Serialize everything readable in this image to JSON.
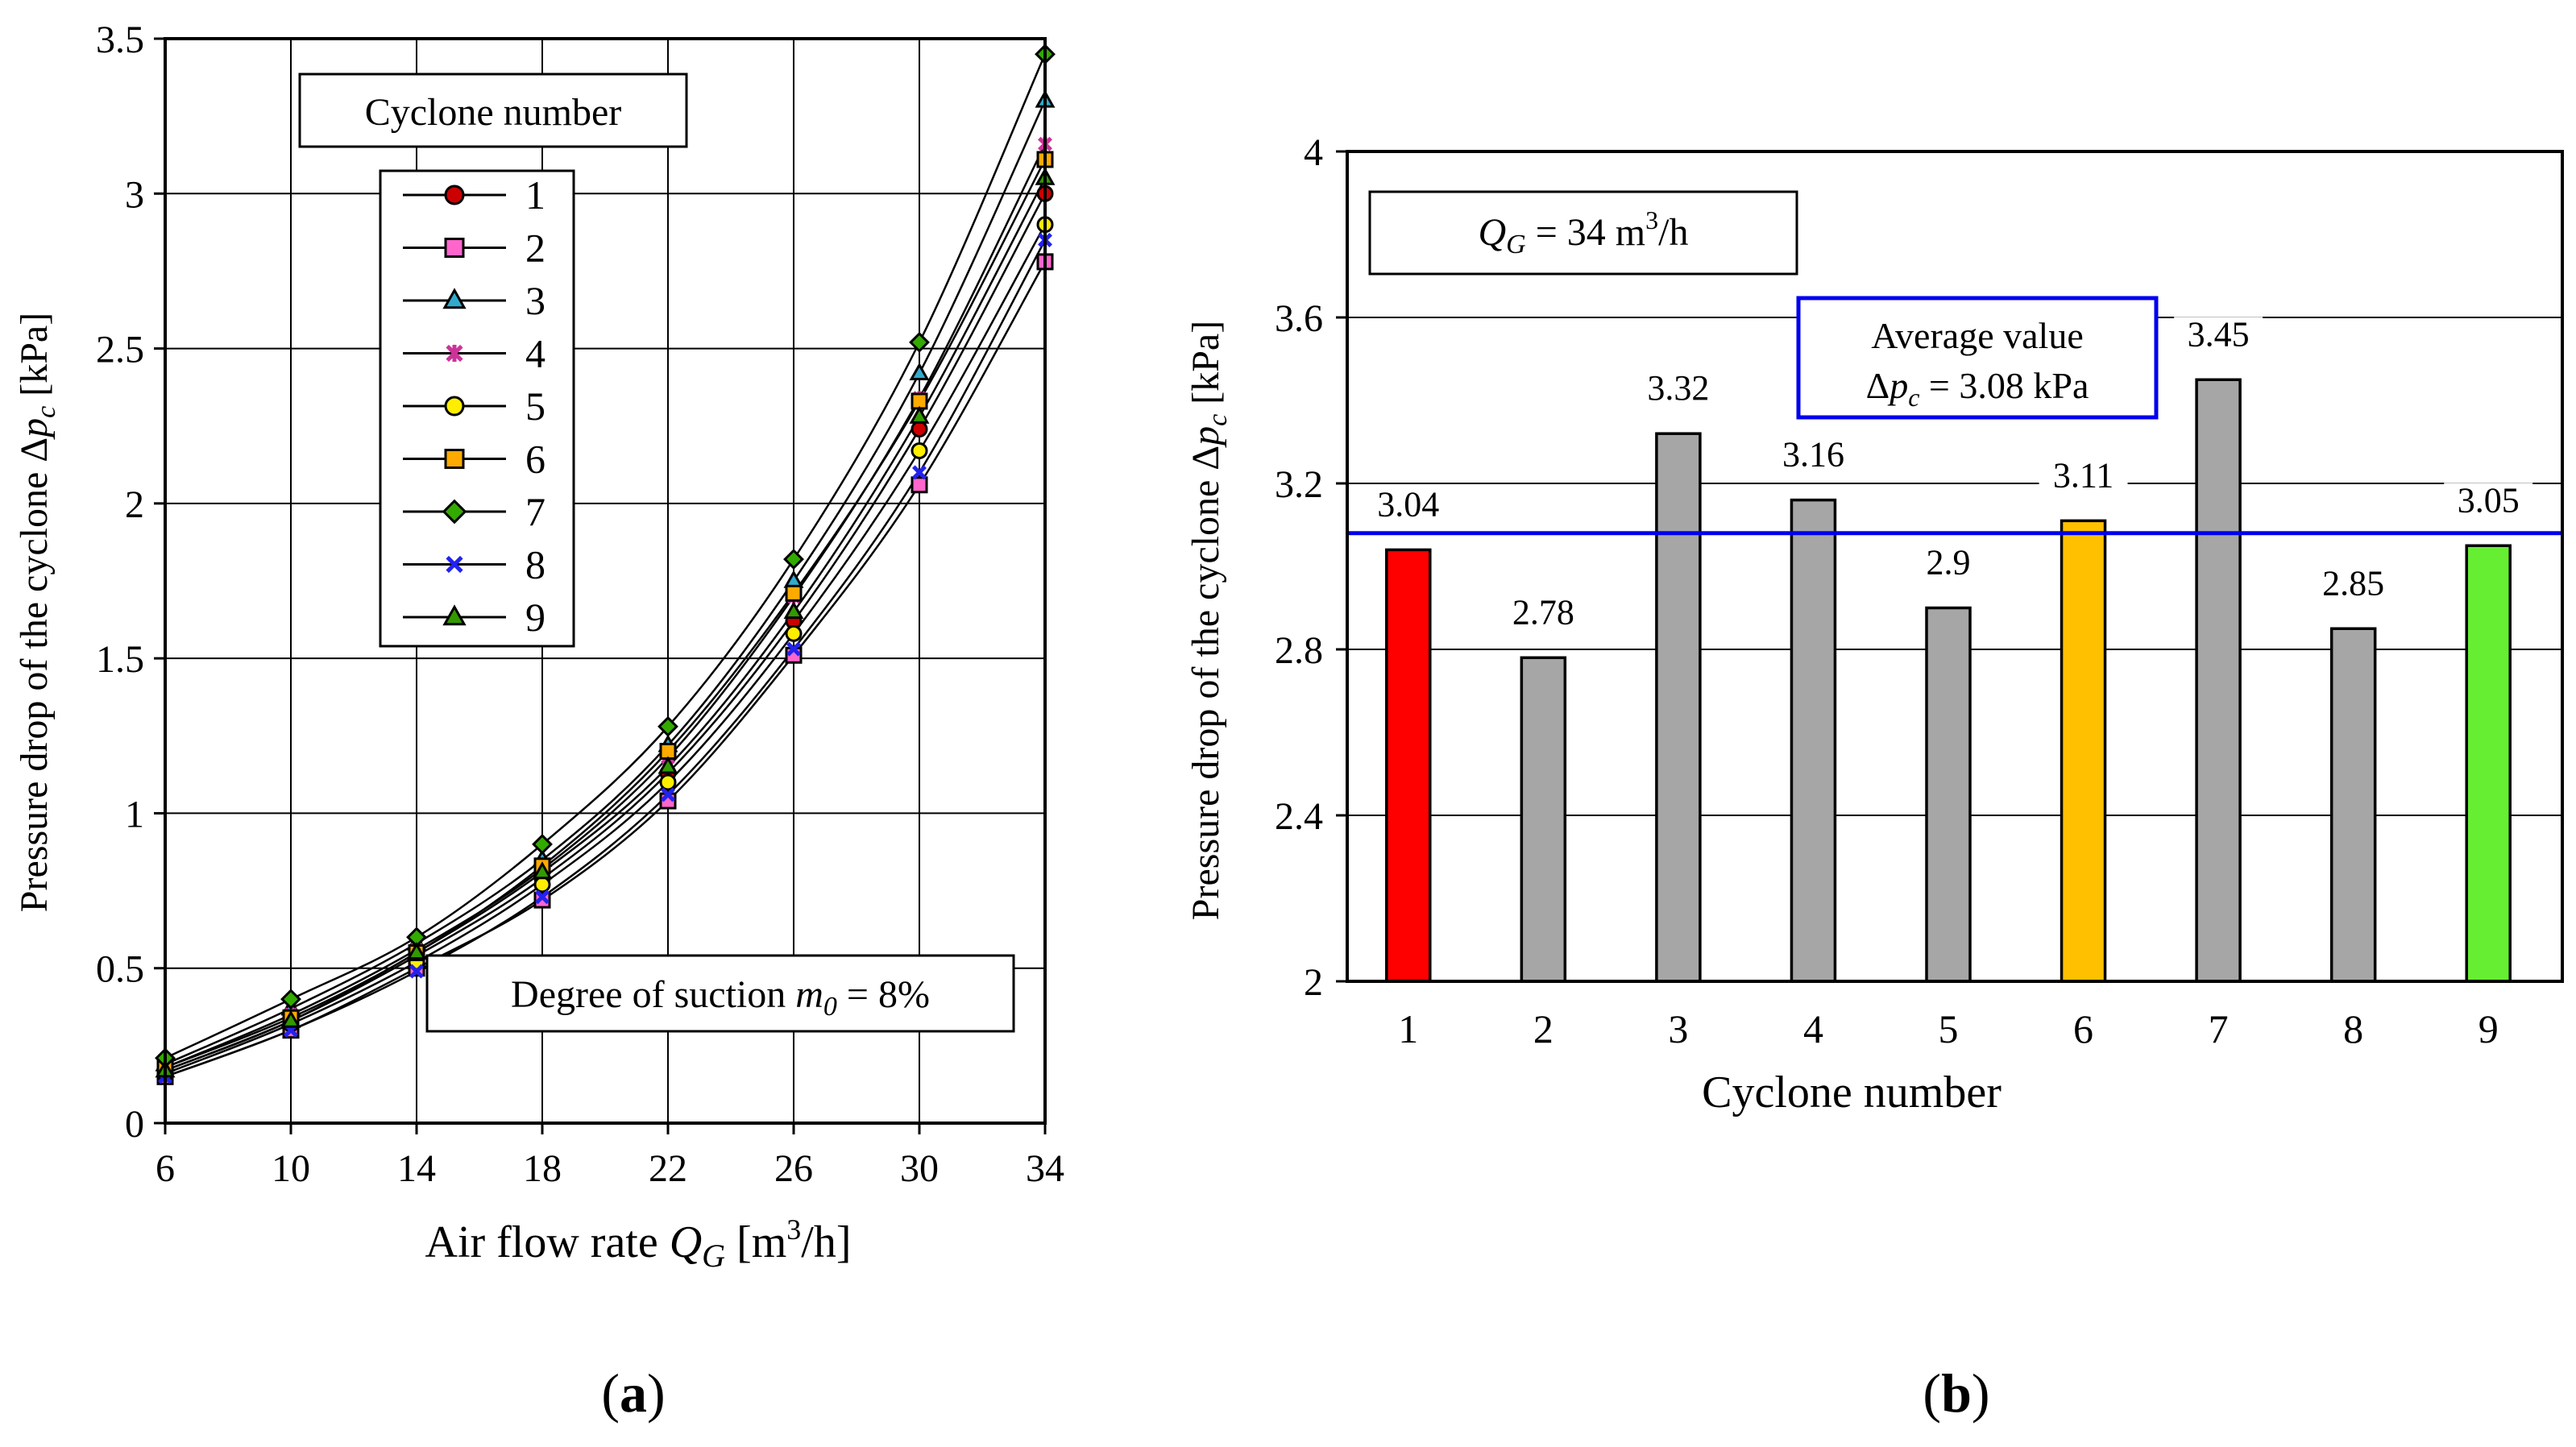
{
  "chart_data": [
    {
      "type": "line",
      "panel_label": "(a)",
      "panel_letter": "a",
      "title": "",
      "xlabel": "Air flow rate Q_G [m³/h]",
      "xlabel_parts": {
        "pre": "Air flow rate ",
        "var": "Q",
        "sub": "G",
        "mid": " [m",
        "sup": "3",
        "post": "/h]"
      },
      "ylabel": "Pressure drop of the cyclone Δp_c [kPa]",
      "ylabel_parts": {
        "pre": "Pressure drop of the cyclone Δ",
        "var": "p",
        "sub": "c",
        "post": " [kPa]"
      },
      "xlim": [
        6,
        34
      ],
      "ylim": [
        0,
        3.5
      ],
      "x_ticks": [
        6,
        10,
        14,
        18,
        22,
        26,
        30,
        34
      ],
      "y_ticks": [
        0,
        0.5,
        1,
        1.5,
        2,
        2.5,
        3,
        3.5
      ],
      "x_tick_labels": [
        "6",
        "10",
        "14",
        "18",
        "22",
        "26",
        "30",
        "34"
      ],
      "y_tick_labels": [
        "0",
        "0.5",
        "1",
        "1.5",
        "2",
        "2.5",
        "3",
        "3.5"
      ],
      "grid": true,
      "legend_title": "Cyclone number",
      "annotation": {
        "pre": "Degree of suction ",
        "var": "m",
        "sub": "0",
        "post": " = 8%"
      },
      "x": [
        6,
        10,
        14,
        18,
        22,
        26,
        30,
        34
      ],
      "series": [
        {
          "name": "1",
          "marker": "circle",
          "color": "#cc0000",
          "values": [
            0.17,
            0.33,
            0.54,
            0.79,
            1.13,
            1.62,
            2.24,
            3.0
          ]
        },
        {
          "name": "2",
          "marker": "square",
          "color": "#ff66cc",
          "values": [
            0.15,
            0.3,
            0.5,
            0.72,
            1.04,
            1.51,
            2.06,
            2.78
          ]
        },
        {
          "name": "3",
          "marker": "triangle",
          "color": "#33aacc",
          "values": [
            0.19,
            0.37,
            0.58,
            0.85,
            1.22,
            1.75,
            2.42,
            3.3
          ]
        },
        {
          "name": "4",
          "marker": "star",
          "color": "#cc3399",
          "values": [
            0.18,
            0.35,
            0.56,
            0.82,
            1.18,
            1.7,
            2.34,
            3.16
          ]
        },
        {
          "name": "5",
          "marker": "circle",
          "color": "#ffee00",
          "values": [
            0.16,
            0.32,
            0.52,
            0.77,
            1.1,
            1.58,
            2.17,
            2.9
          ]
        },
        {
          "name": "6",
          "marker": "square",
          "color": "#ffaa00",
          "values": [
            0.18,
            0.34,
            0.55,
            0.83,
            1.2,
            1.71,
            2.33,
            3.11
          ]
        },
        {
          "name": "7",
          "marker": "diamond",
          "color": "#33aa00",
          "values": [
            0.21,
            0.4,
            0.6,
            0.9,
            1.28,
            1.82,
            2.52,
            3.45
          ]
        },
        {
          "name": "8",
          "marker": "x",
          "color": "#2222ee",
          "values": [
            0.15,
            0.3,
            0.49,
            0.73,
            1.06,
            1.53,
            2.1,
            2.85
          ]
        },
        {
          "name": "9",
          "marker": "triangle",
          "color": "#339900",
          "values": [
            0.17,
            0.33,
            0.55,
            0.81,
            1.15,
            1.65,
            2.28,
            3.05
          ]
        }
      ]
    },
    {
      "type": "bar",
      "panel_label": "(b)",
      "panel_letter": "b",
      "title": "",
      "xlabel": "Cyclone number",
      "ylabel": "Pressure drop of the cyclone Δp_c [kPa]",
      "ylabel_parts": {
        "pre": "Pressure drop of the cyclone Δ",
        "var": "p",
        "sub": "c",
        "post": " [kPa]"
      },
      "ylim": [
        2,
        4
      ],
      "y_ticks": [
        2,
        2.4,
        2.8,
        3.2,
        3.6,
        4
      ],
      "y_tick_labels": [
        "2",
        "2.4",
        "2.8",
        "3.2",
        "3.6",
        "4"
      ],
      "grid": true,
      "categories": [
        "1",
        "2",
        "3",
        "4",
        "5",
        "6",
        "7",
        "8",
        "9"
      ],
      "values": [
        3.04,
        2.78,
        3.32,
        3.16,
        2.9,
        3.11,
        3.45,
        2.85,
        3.05
      ],
      "data_labels": [
        "3.04",
        "2.78",
        "3.32",
        "3.16",
        "2.9",
        "3.11",
        "3.45",
        "2.85",
        "3.05"
      ],
      "bar_colors": [
        "#ff0000",
        "#a6a6a6",
        "#a6a6a6",
        "#a6a6a6",
        "#a6a6a6",
        "#ffc000",
        "#a6a6a6",
        "#a6a6a6",
        "#66ee33"
      ],
      "average_value": 3.08,
      "average_line_color": "#0000ee",
      "average_label_line1": "Average value",
      "average_label_line2": {
        "pre": "Δ",
        "var": "p",
        "sub": "c",
        "post": " = 3.08 kPa"
      },
      "flow_annotation": {
        "var": "Q",
        "sub": "G",
        "mid": " = 34 m",
        "sup": "3",
        "post": "/h"
      }
    }
  ]
}
